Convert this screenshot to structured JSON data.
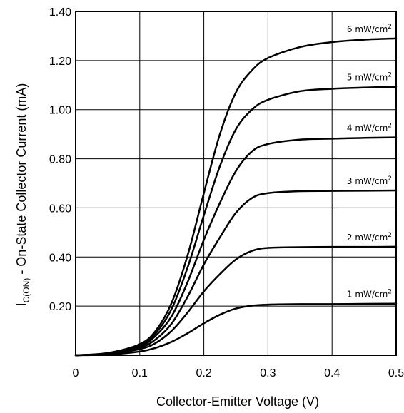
{
  "chart_data": {
    "type": "line",
    "title": "",
    "xlabel": "Collector-Emitter Voltage (V)",
    "ylabel": {
      "prefix": "I",
      "subscript": "C(ON)",
      "suffix": " - On-State Collector Current (mA)"
    },
    "xlim": [
      0,
      0.5
    ],
    "ylim": [
      0,
      1.4
    ],
    "grid": true,
    "x_ticks": [
      "0",
      "0.1",
      "0.2",
      "0.3",
      "0.4",
      "0.5"
    ],
    "y_ticks": [
      "0.20",
      "0.40",
      "0.60",
      "0.80",
      "1.00",
      "1.20",
      "1.40"
    ],
    "x_tick_values": [
      0,
      0.1,
      0.2,
      0.3,
      0.4,
      0.5
    ],
    "y_tick_values": [
      0.2,
      0.4,
      0.6,
      0.8,
      1.0,
      1.2,
      1.4
    ],
    "x": [
      0,
      0.05,
      0.1,
      0.125,
      0.15,
      0.175,
      0.2,
      0.225,
      0.25,
      0.275,
      0.3,
      0.35,
      0.4,
      0.45,
      0.5
    ],
    "series": [
      {
        "name": "1 mW/cm²",
        "values": [
          0,
          0.003,
          0.015,
          0.03,
          0.055,
          0.09,
          0.13,
          0.165,
          0.19,
          0.202,
          0.206,
          0.208,
          0.208,
          0.209,
          0.21
        ]
      },
      {
        "name": "2 mW/cm²",
        "values": [
          0,
          0.005,
          0.025,
          0.05,
          0.1,
          0.175,
          0.26,
          0.33,
          0.39,
          0.425,
          0.437,
          0.44,
          0.441,
          0.441,
          0.442
        ]
      },
      {
        "name": "3 mW/cm²",
        "values": [
          0,
          0.006,
          0.03,
          0.065,
          0.13,
          0.24,
          0.37,
          0.48,
          0.58,
          0.64,
          0.66,
          0.668,
          0.669,
          0.67,
          0.671
        ]
      },
      {
        "name": "4 mW/cm²",
        "values": [
          0,
          0.007,
          0.035,
          0.08,
          0.16,
          0.3,
          0.47,
          0.62,
          0.75,
          0.83,
          0.86,
          0.878,
          0.882,
          0.885,
          0.887
        ]
      },
      {
        "name": "5 mW/cm²",
        "values": [
          0,
          0.008,
          0.04,
          0.09,
          0.19,
          0.36,
          0.57,
          0.77,
          0.92,
          1.0,
          1.04,
          1.075,
          1.085,
          1.09,
          1.093
        ]
      },
      {
        "name": "6 mW/cm²",
        "values": [
          0,
          0.009,
          0.045,
          0.1,
          0.215,
          0.41,
          0.66,
          0.9,
          1.07,
          1.16,
          1.21,
          1.255,
          1.275,
          1.285,
          1.29
        ]
      }
    ],
    "label_parts": [
      {
        "value": "1 mW/cm",
        "sup": "2"
      },
      {
        "value": "2 mW/cm",
        "sup": "2"
      },
      {
        "value": "3 mW/cm",
        "sup": "2"
      },
      {
        "value": "4 mW/cm",
        "sup": "2"
      },
      {
        "value": "5 mW/cm",
        "sup": "2"
      },
      {
        "value": "6 mW/cm",
        "sup": "2"
      }
    ],
    "colors": {
      "line": "#000000",
      "grid": "#000000"
    }
  }
}
